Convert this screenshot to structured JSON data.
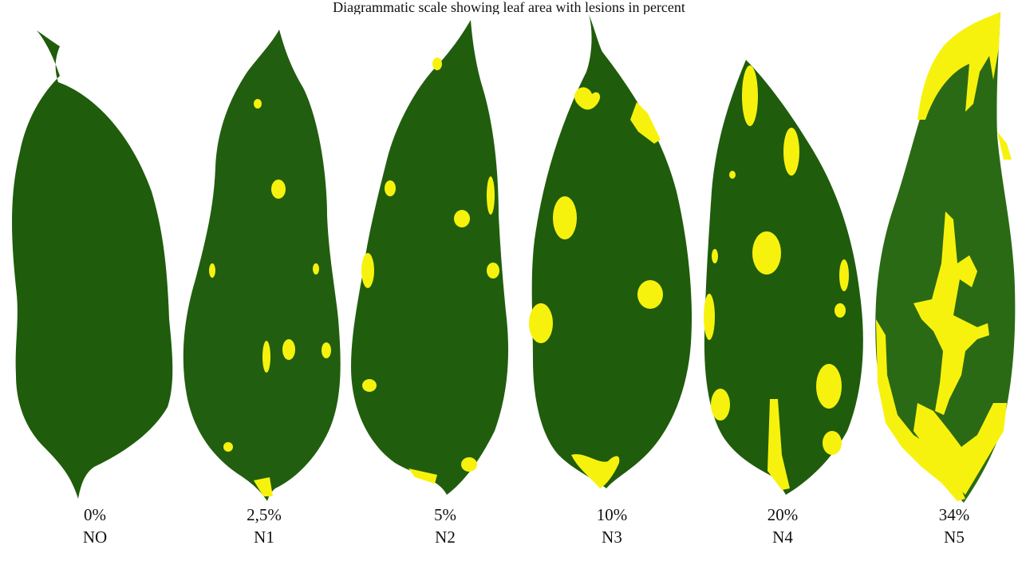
{
  "figure": {
    "caption_partial": "Diagrammatic scale showing leaf area with lesions in percent",
    "colors": {
      "leaf": "#1f5c0c",
      "lesion": "#f7f20d",
      "background": "#ffffff"
    },
    "leaves": [
      {
        "severity": "0%",
        "level": "NO"
      },
      {
        "severity": "2,5%",
        "level": "N1"
      },
      {
        "severity": "5%",
        "level": "N2"
      },
      {
        "severity": "10%",
        "level": "N3"
      },
      {
        "severity": "20%",
        "level": "N4"
      },
      {
        "severity": "34%",
        "level": "N5"
      }
    ]
  }
}
